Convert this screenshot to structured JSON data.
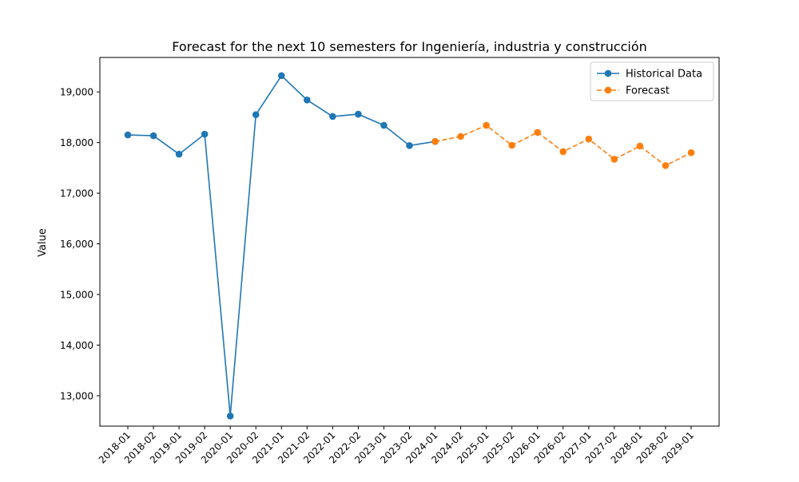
{
  "chart_data": {
    "type": "line",
    "title": "Forecast for the next 10 semesters for Ingeniería, industria y construcción",
    "xlabel": "",
    "ylabel": "Value",
    "categories": [
      "2018-01",
      "2018-02",
      "2019-01",
      "2019-02",
      "2020-01",
      "2020-02",
      "2021-01",
      "2021-02",
      "2022-01",
      "2022-02",
      "2023-01",
      "2023-02",
      "2024-01",
      "2024-02",
      "2025-01",
      "2025-02",
      "2026-01",
      "2026-02",
      "2027-01",
      "2027-02",
      "2028-01",
      "2028-02",
      "2029-01"
    ],
    "ylim": [
      12400,
      19680
    ],
    "yticks": [
      13000,
      14000,
      15000,
      16000,
      17000,
      18000,
      19000
    ],
    "ytick_labels": [
      "13,000",
      "14,000",
      "15,000",
      "16,000",
      "17,000",
      "18,000",
      "19,000"
    ],
    "grid": false,
    "legend_position": "upper right",
    "series": [
      {
        "name": "Historical Data",
        "color": "#1f77b4",
        "line_style": "solid",
        "marker": "circle",
        "x": [
          "2018-01",
          "2018-02",
          "2019-01",
          "2019-02",
          "2020-01",
          "2020-02",
          "2021-01",
          "2021-02",
          "2022-01",
          "2022-02",
          "2023-01",
          "2023-02",
          "2024-01"
        ],
        "values": [
          18150,
          18135,
          17770,
          18165,
          12600,
          18550,
          19320,
          18840,
          18515,
          18560,
          18340,
          17940,
          18020
        ]
      },
      {
        "name": "Forecast",
        "color": "#ff7f0e",
        "line_style": "dashed",
        "marker": "circle",
        "x": [
          "2024-01",
          "2024-02",
          "2025-01",
          "2025-02",
          "2026-01",
          "2026-02",
          "2027-01",
          "2027-02",
          "2028-01",
          "2028-02",
          "2029-01"
        ],
        "values": [
          18020,
          18120,
          18340,
          17945,
          18200,
          17820,
          18070,
          17670,
          17930,
          17545,
          17800
        ]
      }
    ]
  }
}
